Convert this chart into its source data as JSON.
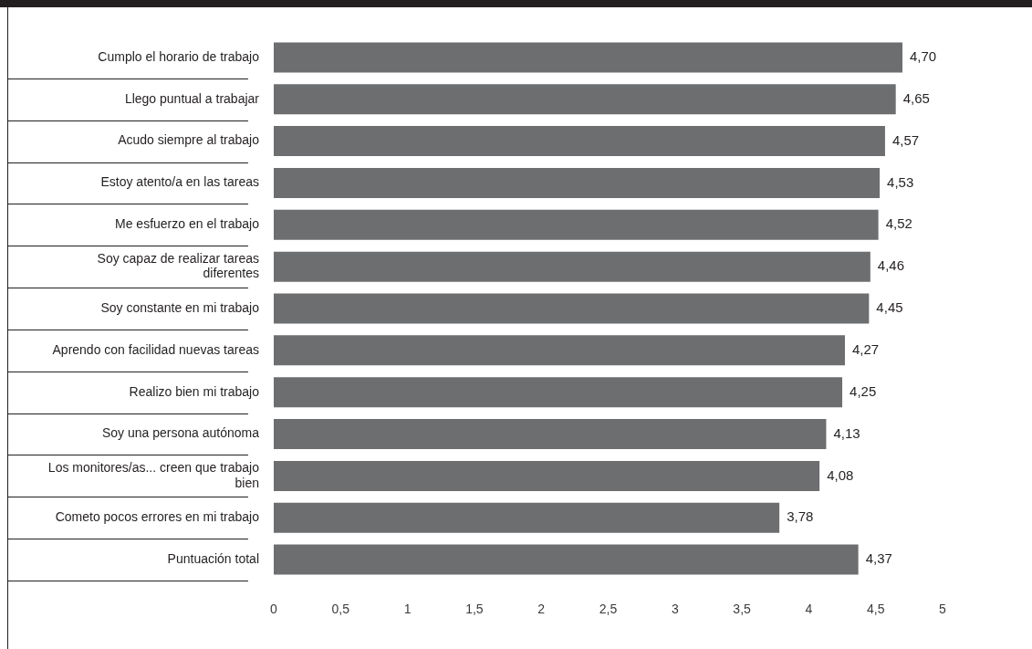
{
  "chart_data": {
    "type": "bar",
    "orientation": "horizontal",
    "categories": [
      "Cumplo el horario de trabajo",
      "Llego puntual a trabajar",
      "Acudo siempre al trabajo",
      "Estoy atento/a en las tareas",
      "Me esfuerzo en el trabajo",
      "Soy capaz de realizar tareas diferentes",
      "Soy constante en mi trabajo",
      "Aprendo con facilidad nuevas tareas",
      "Realizo bien mi trabajo",
      "Soy una persona autónoma",
      "Los monitores/as... creen que trabajo bien",
      "Cometo pocos errores en mi trabajo",
      "Puntuación total"
    ],
    "values": [
      4.7,
      4.65,
      4.57,
      4.53,
      4.52,
      4.46,
      4.45,
      4.27,
      4.25,
      4.13,
      4.08,
      3.78,
      4.37
    ],
    "value_labels": [
      "4,70",
      "4,65",
      "4,57",
      "4,53",
      "4,52",
      "4,46",
      "4,45",
      "4,27",
      "4,25",
      "4,13",
      "4,08",
      "3,78",
      "4,37"
    ],
    "color": "#6d6e70",
    "xlim": [
      0,
      5
    ],
    "xticks": [
      0,
      {
        "value": 0.5,
        "label": "0,5"
      },
      1,
      {
        "value": 1.5,
        "label": "1,5"
      },
      2,
      {
        "value": 2.5,
        "label": "2,5"
      },
      3,
      {
        "value": 3.5,
        "label": "3,5"
      },
      4,
      {
        "value": 4.5,
        "label": "4,5"
      },
      5
    ],
    "grid": false,
    "legend": false
  }
}
